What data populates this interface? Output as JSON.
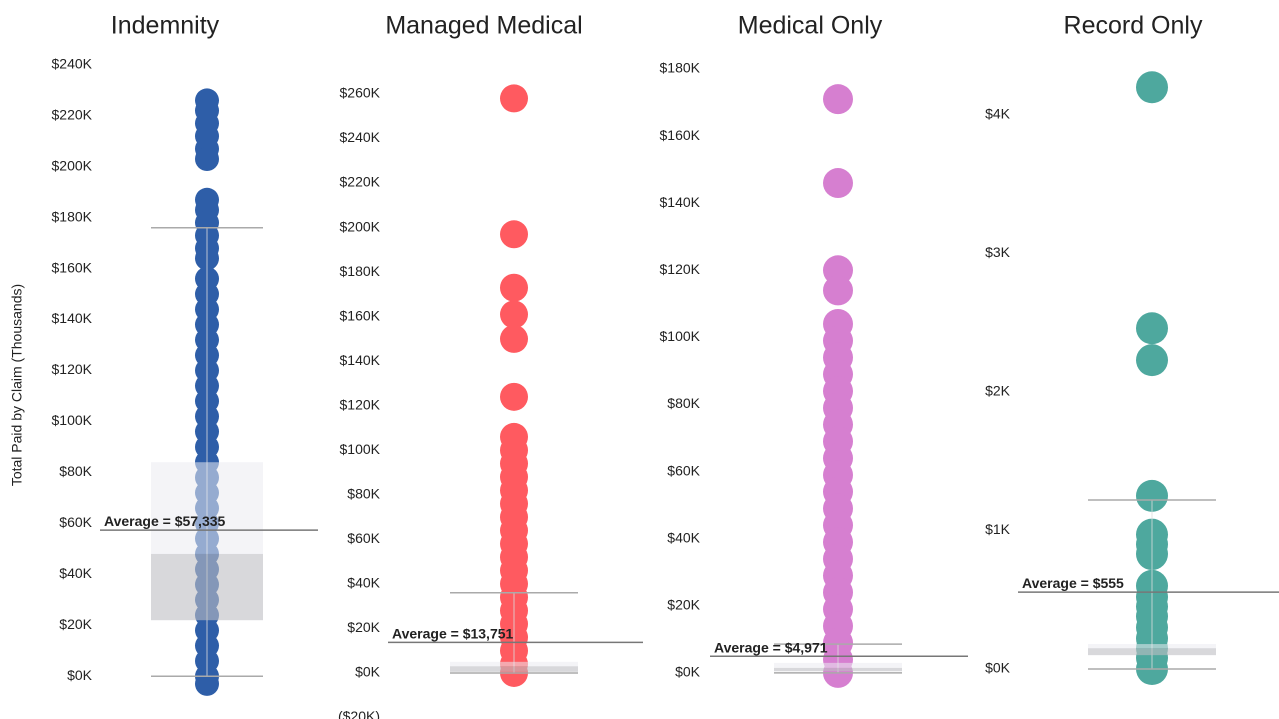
{
  "chart_data": [
    {
      "type": "strip",
      "title": "Indemnity",
      "ylabel": "Total Paid by Claim (Thousands)",
      "color": "#2e5ea8",
      "ylim": [
        -5,
        245
      ],
      "yticks": [
        {
          "value": 0,
          "label": "$0K"
        },
        {
          "value": 20,
          "label": "$20K"
        },
        {
          "value": 40,
          "label": "$40K"
        },
        {
          "value": 60,
          "label": "$60K"
        },
        {
          "value": 80,
          "label": "$80K"
        },
        {
          "value": 100,
          "label": "$100K"
        },
        {
          "value": 120,
          "label": "$120K"
        },
        {
          "value": 140,
          "label": "$140K"
        },
        {
          "value": 160,
          "label": "$160K"
        },
        {
          "value": 180,
          "label": "$180K"
        },
        {
          "value": 200,
          "label": "$200K"
        },
        {
          "value": 220,
          "label": "$220K"
        },
        {
          "value": 240,
          "label": "$240K"
        }
      ],
      "values": [
        226,
        222,
        217,
        212,
        207,
        203,
        187,
        183,
        178,
        173,
        168,
        164,
        156,
        150,
        144,
        138,
        132,
        126,
        120,
        114,
        108,
        102,
        96,
        90,
        84,
        78,
        72,
        66,
        60,
        54,
        48,
        42,
        36,
        30,
        24,
        18,
        12,
        6,
        0,
        -3
      ],
      "box": {
        "whisker_low": 0,
        "q1": 22,
        "median": 48,
        "q3": 84,
        "whisker_high": 176
      },
      "average": {
        "value": 57.335,
        "label": "Average = $57,335"
      }
    },
    {
      "type": "strip",
      "title": "Managed Medical",
      "color": "#ff5a60",
      "ylim": [
        -20,
        270
      ],
      "yticks": [
        {
          "value": -20,
          "label": "($20K)"
        },
        {
          "value": 0,
          "label": "$0K"
        },
        {
          "value": 20,
          "label": "$20K"
        },
        {
          "value": 40,
          "label": "$40K"
        },
        {
          "value": 60,
          "label": "$60K"
        },
        {
          "value": 80,
          "label": "$80K"
        },
        {
          "value": 100,
          "label": "$100K"
        },
        {
          "value": 120,
          "label": "$120K"
        },
        {
          "value": 140,
          "label": "$140K"
        },
        {
          "value": 160,
          "label": "$160K"
        },
        {
          "value": 180,
          "label": "$180K"
        },
        {
          "value": 200,
          "label": "$200K"
        },
        {
          "value": 220,
          "label": "$220K"
        },
        {
          "value": 240,
          "label": "$240K"
        },
        {
          "value": 260,
          "label": "$260K"
        }
      ],
      "values": [
        258,
        197,
        173,
        161,
        150,
        124,
        106,
        100,
        94,
        88,
        82,
        76,
        70,
        64,
        58,
        52,
        46,
        40,
        34,
        28,
        22,
        16,
        10,
        4,
        0
      ],
      "box": {
        "whisker_low": 0,
        "q1": 0.5,
        "median": 3,
        "q3": 5,
        "whisker_high": 36
      },
      "average": {
        "value": 13.751,
        "label": "Average = $13,751"
      }
    },
    {
      "type": "strip",
      "title": "Medical Only",
      "color": "#d67fd0",
      "ylim": [
        -3,
        185
      ],
      "yticks": [
        {
          "value": 0,
          "label": "$0K"
        },
        {
          "value": 20,
          "label": "$20K"
        },
        {
          "value": 40,
          "label": "$40K"
        },
        {
          "value": 60,
          "label": "$60K"
        },
        {
          "value": 80,
          "label": "$80K"
        },
        {
          "value": 100,
          "label": "$100K"
        },
        {
          "value": 120,
          "label": "$120K"
        },
        {
          "value": 140,
          "label": "$140K"
        },
        {
          "value": 160,
          "label": "$160K"
        },
        {
          "value": 180,
          "label": "$180K"
        }
      ],
      "values": [
        171,
        146,
        120,
        114,
        104,
        99,
        94,
        89,
        84,
        79,
        74,
        69,
        64,
        59,
        54,
        49,
        44,
        39,
        34,
        29,
        24,
        19,
        14,
        9,
        4,
        0
      ],
      "box": {
        "whisker_low": 0,
        "q1": 0.5,
        "median": 1.5,
        "q3": 3,
        "whisker_high": 8.6
      },
      "average": {
        "value": 4.971,
        "label": "Average = $4,971"
      }
    },
    {
      "type": "strip",
      "title": "Record Only",
      "color": "#4ea89e",
      "ylim": [
        -0.1,
        4.35
      ],
      "yticks": [
        {
          "value": 0,
          "label": "$0K"
        },
        {
          "value": 1,
          "label": "$1K"
        },
        {
          "value": 2,
          "label": "$2K"
        },
        {
          "value": 3,
          "label": "$3K"
        },
        {
          "value": 4,
          "label": "$4K"
        }
      ],
      "values": [
        4.2,
        2.46,
        2.23,
        1.25,
        0.97,
        0.9,
        0.83,
        0.6,
        0.52,
        0.45,
        0.38,
        0.3,
        0.22,
        0.15,
        0.08,
        0
      ],
      "box": {
        "whisker_low": 0,
        "q1": 0.1,
        "median": 0.15,
        "q3": 0.18,
        "whisker_high": 1.22
      },
      "average": {
        "value": 0.555,
        "label": "Average = $555"
      }
    }
  ]
}
